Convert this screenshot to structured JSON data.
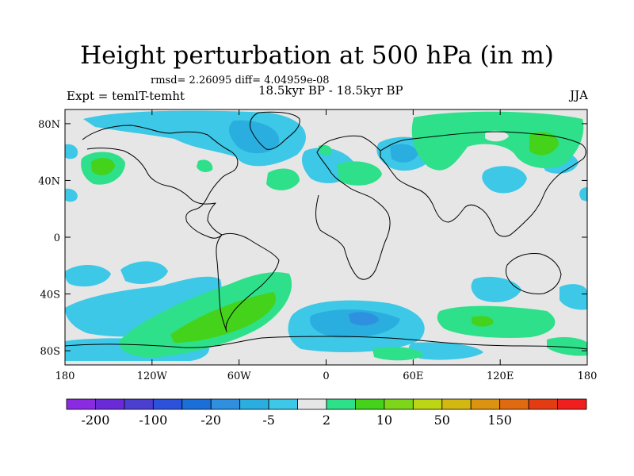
{
  "title": "Height perturbation at 500 hPa (in m)",
  "stats": "rmsd= 2.26095 diff= 4.04959e-08",
  "experiment": "Expt = temlT-temht",
  "period": "18.5kyr BP - 18.5kyr BP",
  "season": "JJA",
  "map": {
    "projection": "cylindrical-equidistant",
    "lon_range": [
      -180,
      180
    ],
    "lat_range": [
      -90,
      90
    ],
    "x_ticks": [
      {
        "lon": -180,
        "label": "180"
      },
      {
        "lon": -120,
        "label": "120W"
      },
      {
        "lon": -60,
        "label": "60W"
      },
      {
        "lon": 0,
        "label": "0"
      },
      {
        "lon": 60,
        "label": "60E"
      },
      {
        "lon": 120,
        "label": "120E"
      },
      {
        "lon": 180,
        "label": "180"
      }
    ],
    "y_ticks": [
      {
        "lat": 80,
        "label": "80N"
      },
      {
        "lat": 40,
        "label": "40N"
      },
      {
        "lat": 0,
        "label": "0"
      },
      {
        "lat": -40,
        "label": "40S"
      },
      {
        "lat": -80,
        "label": "80S"
      }
    ]
  },
  "colorbar": {
    "colors": [
      "#8a2be2",
      "#6a2ad8",
      "#4a3fd0",
      "#2c52dc",
      "#1a70d8",
      "#2f90e0",
      "#2aaee0",
      "#3cc8e6",
      "#e6e6e6",
      "#2ee08a",
      "#44d21a",
      "#7ed61a",
      "#bcd616",
      "#d4b812",
      "#dc9410",
      "#e06a10",
      "#e43c12",
      "#f01e1e"
    ],
    "labels": [
      {
        "boundary": 1,
        "text": "-200"
      },
      {
        "boundary": 3,
        "text": "-100"
      },
      {
        "boundary": 5,
        "text": "-20"
      },
      {
        "boundary": 7,
        "text": "-5"
      },
      {
        "boundary": 9,
        "text": "2"
      },
      {
        "boundary": 11,
        "text": "10"
      },
      {
        "boundary": 13,
        "text": "50"
      },
      {
        "boundary": 15,
        "text": "150"
      }
    ]
  }
}
